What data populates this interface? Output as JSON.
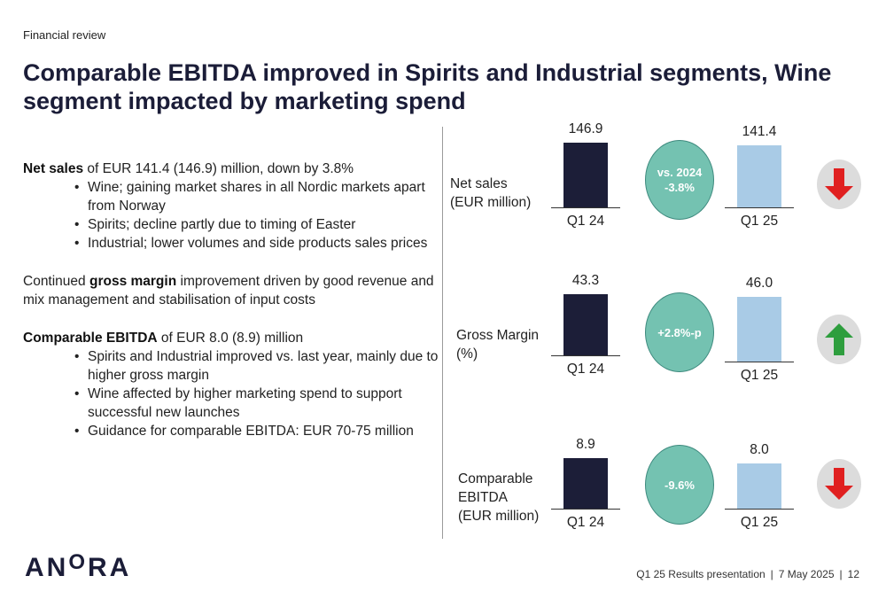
{
  "header": {
    "section_label": "Financial review",
    "title": "Comparable EBITDA improved in Spirits and Industrial segments, Wine segment impacted by marketing spend"
  },
  "body": {
    "net_sales": {
      "bold": "Net sales",
      "rest": " of EUR 141.4 (146.9) million, down by 3.8%",
      "bullets": [
        "Wine; gaining market shares in all Nordic markets apart from Norway",
        "Spirits; decline partly due to timing of Easter",
        "Industrial; lower volumes and side products sales prices"
      ]
    },
    "gross_margin": {
      "pre": "Continued ",
      "bold": "gross margin",
      "rest": " improvement driven by good revenue and mix management and stabilisation of input costs"
    },
    "ebitda": {
      "bold": "Comparable EBITDA",
      "rest": " of EUR 8.0 (8.9) million",
      "bullets": [
        "Spirits and Industrial improved vs. last year, mainly due to higher gross margin",
        "Wine affected by higher marketing spend to support successful new launches",
        "Guidance for comparable EBITDA: EUR 70-75 million"
      ]
    }
  },
  "chart_data": [
    {
      "type": "bar",
      "label": "Net sales (EUR million)",
      "categories": [
        "Q1 24",
        "Q1 25"
      ],
      "values": [
        146.9,
        141.4
      ],
      "value_labels": [
        "146.9",
        "141.4"
      ],
      "change": "vs. 2024\n-3.8%",
      "direction": "down",
      "colors": [
        "#1c1e38",
        "#a9cbe6"
      ]
    },
    {
      "type": "bar",
      "label": "Gross Margin (%)",
      "categories": [
        "Q1 24",
        "Q1 25"
      ],
      "values": [
        43.3,
        46.0
      ],
      "value_labels": [
        "43.3",
        "46.0"
      ],
      "change": "+2.8%-p",
      "direction": "up",
      "colors": [
        "#1c1e38",
        "#a9cbe6"
      ]
    },
    {
      "type": "bar",
      "label": "Comparable EBITDA (EUR million)",
      "categories": [
        "Q1 24",
        "Q1 25"
      ],
      "values": [
        8.9,
        8.0
      ],
      "value_labels": [
        "8.9",
        "8.0"
      ],
      "change": "-9.6%",
      "direction": "down",
      "colors": [
        "#1c1e38",
        "#a9cbe6"
      ]
    }
  ],
  "colors": {
    "arrow_down": "#e02020",
    "arrow_up": "#2e9e3e",
    "bubble": "#74c2b1"
  },
  "footer": {
    "logo": "ANORA",
    "presentation": "Q1 25 Results presentation",
    "date": "7 May 2025",
    "page": "12"
  }
}
